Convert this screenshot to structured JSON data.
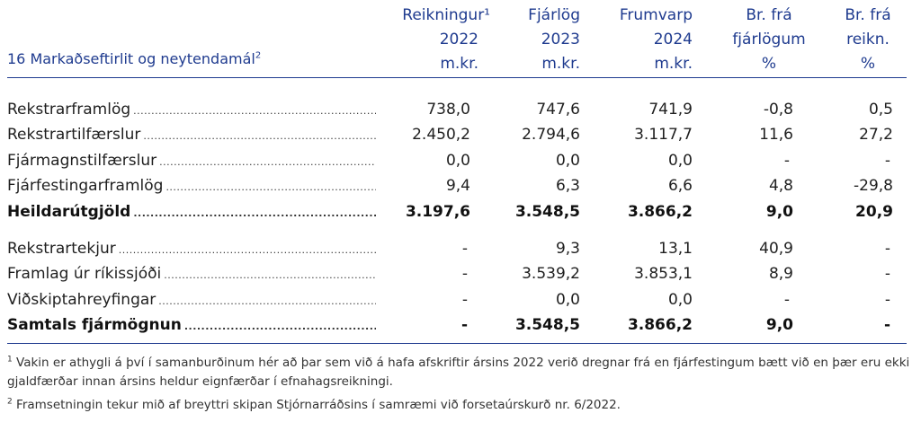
{
  "header": {
    "title": "16 Markaðseftirlit og neytendamál",
    "title_sup": "2",
    "columns": [
      {
        "l1": "Reikningur¹",
        "l2": "2022",
        "l3": "m.kr."
      },
      {
        "l1": "Fjárlög",
        "l2": "2023",
        "l3": "m.kr."
      },
      {
        "l1": "Frumvarp",
        "l2": "2024",
        "l3": "m.kr."
      },
      {
        "l1": "Br. frá",
        "l2": "fjárlögum",
        "l3": "%"
      },
      {
        "l1": "Br. frá",
        "l2": "reikn.",
        "l3": "%"
      }
    ]
  },
  "rows": [
    {
      "label": "Rekstrarframlög",
      "v": [
        "738,0",
        "747,6",
        "741,9",
        "-0,8",
        "0,5"
      ]
    },
    {
      "label": "Rekstrartilfærslur",
      "v": [
        "2.450,2",
        "2.794,6",
        "3.117,7",
        "11,6",
        "27,2"
      ]
    },
    {
      "label": "Fjármagnstilfærslur",
      "v": [
        "0,0",
        "0,0",
        "0,0",
        "-",
        "-"
      ]
    },
    {
      "label": "Fjárfestingarframlög",
      "v": [
        "9,4",
        "6,3",
        "6,6",
        "4,8",
        "-29,8"
      ]
    },
    {
      "label": "Heildarútgjöld",
      "v": [
        "3.197,6",
        "3.548,5",
        "3.866,2",
        "9,0",
        "20,9"
      ]
    },
    {
      "label": "Rekstrartekjur",
      "v": [
        "-",
        "9,3",
        "13,1",
        "40,9",
        "-"
      ]
    },
    {
      "label": "Framlag úr ríkissjóði",
      "v": [
        "-",
        "3.539,2",
        "3.853,1",
        "8,9",
        "-"
      ]
    },
    {
      "label": "Viðskiptahreyfingar",
      "v": [
        "-",
        "0,0",
        "0,0",
        "-",
        "-"
      ]
    },
    {
      "label": "Samtals fjármögnun",
      "v": [
        "-",
        "3.548,5",
        "3.866,2",
        "9,0",
        "-"
      ]
    }
  ],
  "footnotes": [
    {
      "mark": "1",
      "text": "Vakin er athygli á því í samanburðinum hér að þar sem við á hafa afskriftir ársins 2022 verið dregnar frá en fjárfestingum bætt við en þær eru ekki gjaldfærðar innan ársins heldur eignfærðar í efnahagsreikningi."
    },
    {
      "mark": "2",
      "text": "Framsetningin tekur mið af breyttri skipan Stjórnarráðsins í samræmi við forsetaúrskurð nr. 6/2022."
    }
  ],
  "colors": {
    "heading": "#1f3b8f",
    "rule": "#1f3b8f",
    "text": "#1f1f1f"
  }
}
